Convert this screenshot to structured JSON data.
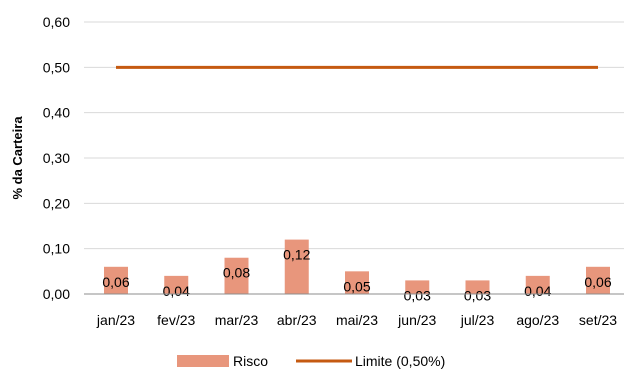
{
  "chart_data": {
    "type": "bar",
    "categories": [
      "jan/23",
      "fev/23",
      "mar/23",
      "abr/23",
      "mai/23",
      "jun/23",
      "jul/23",
      "ago/23",
      "set/23"
    ],
    "series": [
      {
        "name": "Risco",
        "type": "bar",
        "values": [
          0.06,
          0.04,
          0.08,
          0.12,
          0.05,
          0.03,
          0.03,
          0.04,
          0.06
        ],
        "data_labels": [
          "0,06",
          "0,04",
          "0,08",
          "0,12",
          "0,05",
          "0,03",
          "0,03",
          "0,04",
          "0,06"
        ],
        "color": "#E8967C"
      },
      {
        "name": "Limite (0,50%)",
        "type": "line",
        "values": [
          0.5,
          0.5,
          0.5,
          0.5,
          0.5,
          0.5,
          0.5,
          0.5,
          0.5
        ],
        "color": "#C55A11"
      }
    ],
    "ylabel": "% da Carteira",
    "ylim": [
      0,
      0.6
    ],
    "yticks": [
      0,
      0.1,
      0.2,
      0.3,
      0.4,
      0.5,
      0.6
    ],
    "ytick_labels": [
      "0,00",
      "0,10",
      "0,20",
      "0,30",
      "0,40",
      "0,50",
      "0,60"
    ],
    "grid": true,
    "legend_position": "bottom"
  }
}
